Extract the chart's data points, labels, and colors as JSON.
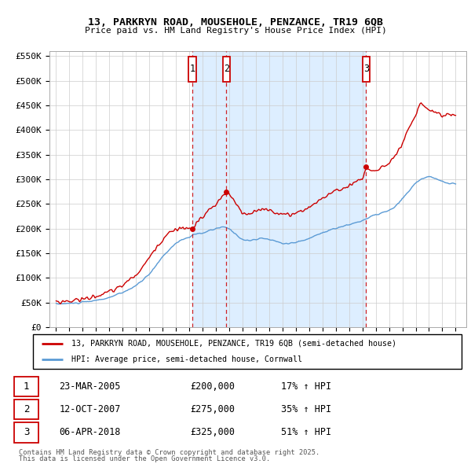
{
  "title": "13, PARKRYN ROAD, MOUSEHOLE, PENZANCE, TR19 6QB",
  "subtitle": "Price paid vs. HM Land Registry's House Price Index (HPI)",
  "legend_line1": "13, PARKRYN ROAD, MOUSEHOLE, PENZANCE, TR19 6QB (semi-detached house)",
  "legend_line2": "HPI: Average price, semi-detached house, Cornwall",
  "footer1": "Contains HM Land Registry data © Crown copyright and database right 2025.",
  "footer2": "This data is licensed under the Open Government Licence v3.0.",
  "transactions": [
    {
      "num": 1,
      "date": "23-MAR-2005",
      "price": 200000,
      "hpi_pct": "17%",
      "year": 2005.22
    },
    {
      "num": 2,
      "date": "12-OCT-2007",
      "price": 275000,
      "hpi_pct": "35%",
      "year": 2007.78
    },
    {
      "num": 3,
      "date": "06-APR-2018",
      "price": 325000,
      "hpi_pct": "51%",
      "year": 2018.27
    }
  ],
  "ylim": [
    0,
    560000
  ],
  "xlim": [
    1994.5,
    2025.8
  ],
  "yticks": [
    0,
    50000,
    100000,
    150000,
    200000,
    250000,
    300000,
    350000,
    400000,
    450000,
    500000,
    550000
  ],
  "ytick_labels": [
    "£0",
    "£50K",
    "£100K",
    "£150K",
    "£200K",
    "£250K",
    "£300K",
    "£350K",
    "£400K",
    "£450K",
    "£500K",
    "£550K"
  ],
  "red_line_color": "#cc0000",
  "blue_line_color": "#5b9bd5",
  "background_color": "#ffffff",
  "shading_color": "#ddeeff",
  "grid_color": "#cccccc",
  "marker_box_color": "#cc0000"
}
